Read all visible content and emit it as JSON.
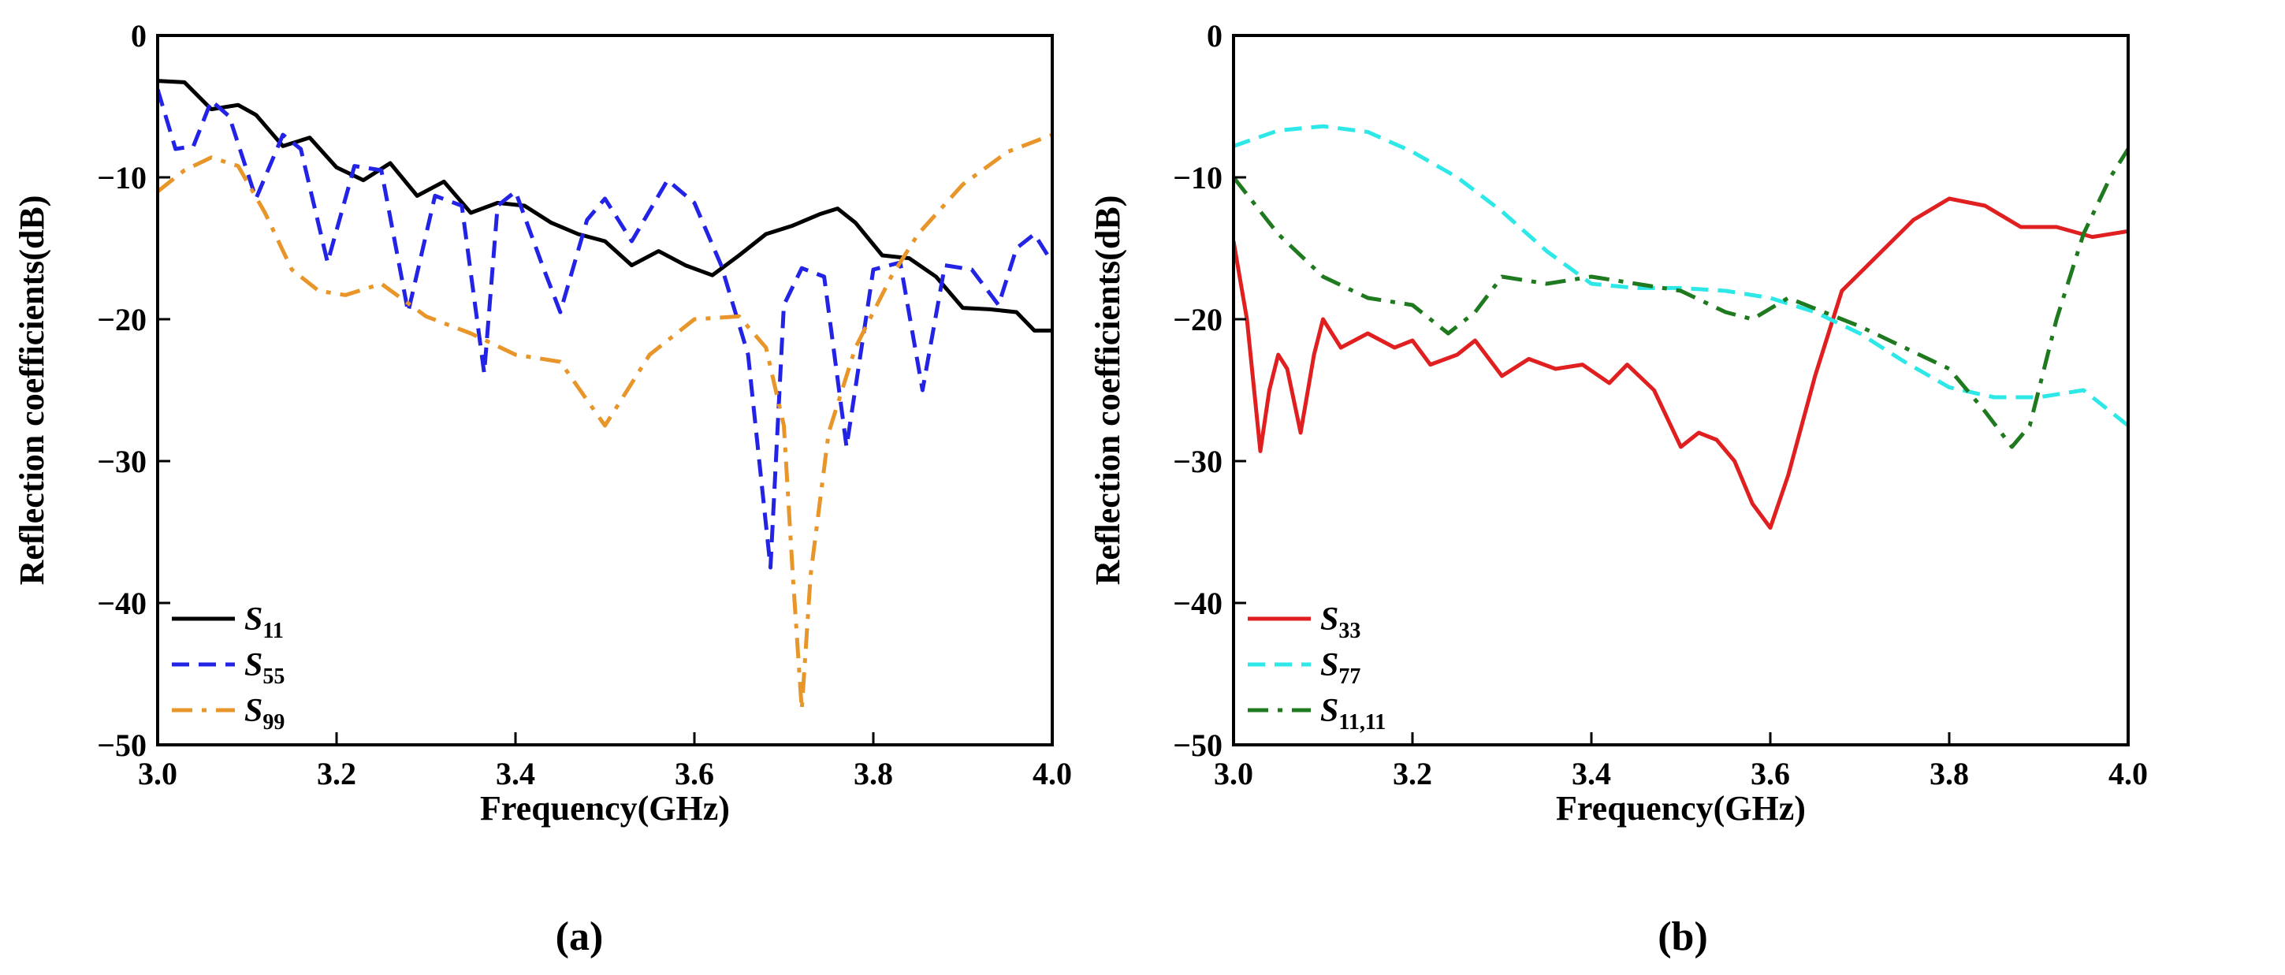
{
  "chart_data": [
    {
      "type": "line",
      "panel_label": "(a)",
      "xlabel": "Frequency(GHz)",
      "ylabel": "Reflection coefficients(dB)",
      "xlim": [
        3.0,
        4.0
      ],
      "ylim": [
        -50,
        0
      ],
      "xticks": [
        "3.0",
        "3.2",
        "3.4",
        "3.6",
        "3.8",
        "4.0"
      ],
      "yticks": [
        "0",
        "−10",
        "−20",
        "−30",
        "−40",
        "−50"
      ],
      "grid": false,
      "legend_position": "bottom-left",
      "series": [
        {
          "name": "S",
          "sub": "11",
          "color": "#000000",
          "dash": "solid",
          "x": [
            3.0,
            3.03,
            3.06,
            3.09,
            3.11,
            3.14,
            3.17,
            3.2,
            3.23,
            3.26,
            3.29,
            3.32,
            3.35,
            3.38,
            3.41,
            3.44,
            3.47,
            3.5,
            3.53,
            3.56,
            3.59,
            3.62,
            3.65,
            3.68,
            3.71,
            3.74,
            3.76,
            3.78,
            3.81,
            3.84,
            3.87,
            3.9,
            3.93,
            3.96,
            3.98,
            4.0
          ],
          "y": [
            -3.2,
            -3.3,
            -5.2,
            -4.9,
            -5.6,
            -7.8,
            -7.2,
            -9.3,
            -10.2,
            -9.0,
            -11.3,
            -10.3,
            -12.5,
            -11.8,
            -12.0,
            -13.2,
            -14.0,
            -14.5,
            -16.2,
            -15.2,
            -16.2,
            -16.9,
            -15.5,
            -14.0,
            -13.4,
            -12.6,
            -12.2,
            -13.2,
            -15.5,
            -15.7,
            -17.0,
            -19.2,
            -19.3,
            -19.5,
            -20.8,
            -20.8
          ]
        },
        {
          "name": "S",
          "sub": "55",
          "color": "#2323e6",
          "dash": "dash",
          "x": [
            3.0,
            3.02,
            3.04,
            3.06,
            3.08,
            3.11,
            3.14,
            3.16,
            3.19,
            3.22,
            3.25,
            3.28,
            3.31,
            3.34,
            3.365,
            3.38,
            3.4,
            3.43,
            3.45,
            3.48,
            3.5,
            3.53,
            3.57,
            3.6,
            3.63,
            3.66,
            3.685,
            3.7,
            3.72,
            3.745,
            3.77,
            3.8,
            3.83,
            3.855,
            3.88,
            3.91,
            3.94,
            3.96,
            3.98,
            4.0
          ],
          "y": [
            -3.8,
            -8.0,
            -7.8,
            -4.6,
            -5.7,
            -11.5,
            -7.0,
            -8.0,
            -16.0,
            -9.2,
            -9.5,
            -19.5,
            -11.3,
            -12.0,
            -23.8,
            -12.0,
            -11.0,
            -16.2,
            -19.5,
            -13.0,
            -11.5,
            -14.5,
            -10.2,
            -11.8,
            -16.2,
            -22.5,
            -37.5,
            -19.0,
            -16.4,
            -17.0,
            -29.0,
            -16.5,
            -16.0,
            -25.0,
            -16.2,
            -16.5,
            -19.0,
            -15.0,
            -14.0,
            -16.0
          ]
        },
        {
          "name": "S",
          "sub": "99",
          "color": "#e8952a",
          "dash": "dashdot",
          "x": [
            3.0,
            3.03,
            3.06,
            3.09,
            3.12,
            3.15,
            3.18,
            3.21,
            3.25,
            3.3,
            3.35,
            3.4,
            3.45,
            3.5,
            3.55,
            3.6,
            3.65,
            3.68,
            3.7,
            3.71,
            3.72,
            3.73,
            3.75,
            3.78,
            3.82,
            3.85,
            3.9,
            3.95,
            4.0
          ],
          "y": [
            -11.0,
            -9.5,
            -8.6,
            -9.2,
            -12.5,
            -16.5,
            -18.0,
            -18.3,
            -17.5,
            -19.8,
            -21.0,
            -22.5,
            -23.0,
            -27.5,
            -22.5,
            -20.0,
            -19.8,
            -22.0,
            -27.5,
            -38.0,
            -47.5,
            -38.0,
            -28.0,
            -22.0,
            -17.0,
            -14.0,
            -10.5,
            -8.2,
            -7.0
          ]
        }
      ]
    },
    {
      "type": "line",
      "panel_label": "(b)",
      "xlabel": "Frequency(GHz)",
      "ylabel": "Reflection coefficients(dB)",
      "xlim": [
        3.0,
        4.0
      ],
      "ylim": [
        -50,
        0
      ],
      "xticks": [
        "3.0",
        "3.2",
        "3.4",
        "3.6",
        "3.8",
        "4.0"
      ],
      "yticks": [
        "0",
        "−10",
        "−20",
        "−30",
        "−40",
        "−50"
      ],
      "grid": false,
      "legend_position": "bottom-left",
      "series": [
        {
          "name": "S",
          "sub": "33",
          "color": "#e02020",
          "dash": "solid",
          "x": [
            3.0,
            3.015,
            3.03,
            3.04,
            3.05,
            3.06,
            3.075,
            3.09,
            3.1,
            3.12,
            3.15,
            3.18,
            3.2,
            3.22,
            3.25,
            3.27,
            3.3,
            3.33,
            3.36,
            3.39,
            3.42,
            3.44,
            3.47,
            3.5,
            3.52,
            3.54,
            3.56,
            3.58,
            3.6,
            3.62,
            3.65,
            3.68,
            3.72,
            3.76,
            3.8,
            3.84,
            3.88,
            3.92,
            3.96,
            4.0
          ],
          "y": [
            -14.5,
            -20.0,
            -29.3,
            -25.0,
            -22.5,
            -23.5,
            -28.0,
            -22.5,
            -20.0,
            -22.0,
            -21.0,
            -22.0,
            -21.5,
            -23.2,
            -22.5,
            -21.5,
            -24.0,
            -22.8,
            -23.5,
            -23.2,
            -24.5,
            -23.2,
            -25.0,
            -29.0,
            -28.0,
            -28.5,
            -30.0,
            -33.0,
            -34.7,
            -31.0,
            -24.0,
            -18.0,
            -15.5,
            -13.0,
            -11.5,
            -12.0,
            -13.5,
            -13.5,
            -14.2,
            -13.8
          ]
        },
        {
          "name": "S",
          "sub": "77",
          "color": "#2ee8e8",
          "dash": "dash",
          "x": [
            3.0,
            3.05,
            3.1,
            3.15,
            3.2,
            3.25,
            3.3,
            3.35,
            3.4,
            3.45,
            3.5,
            3.55,
            3.6,
            3.65,
            3.7,
            3.75,
            3.8,
            3.85,
            3.9,
            3.95,
            4.0
          ],
          "y": [
            -7.8,
            -6.7,
            -6.4,
            -6.8,
            -8.2,
            -10.0,
            -12.4,
            -15.2,
            -17.5,
            -17.8,
            -17.8,
            -18.0,
            -18.5,
            -19.5,
            -21.0,
            -23.0,
            -24.8,
            -25.5,
            -25.5,
            -25.0,
            -27.5
          ]
        },
        {
          "name": "S",
          "sub": "11,11",
          "color": "#1f7a1f",
          "dash": "dashdot",
          "x": [
            3.0,
            3.05,
            3.1,
            3.15,
            3.2,
            3.24,
            3.27,
            3.3,
            3.35,
            3.4,
            3.45,
            3.5,
            3.55,
            3.58,
            3.62,
            3.66,
            3.7,
            3.75,
            3.8,
            3.84,
            3.87,
            3.89,
            3.92,
            3.95,
            3.98,
            4.0
          ],
          "y": [
            -10.0,
            -14.0,
            -17.0,
            -18.5,
            -19.0,
            -21.0,
            -19.5,
            -17.0,
            -17.5,
            -17.0,
            -17.5,
            -18.0,
            -19.5,
            -20.0,
            -18.5,
            -19.5,
            -20.5,
            -22.0,
            -23.5,
            -26.5,
            -29.0,
            -27.5,
            -20.0,
            -14.0,
            -10.0,
            -8.0
          ]
        }
      ]
    }
  ]
}
